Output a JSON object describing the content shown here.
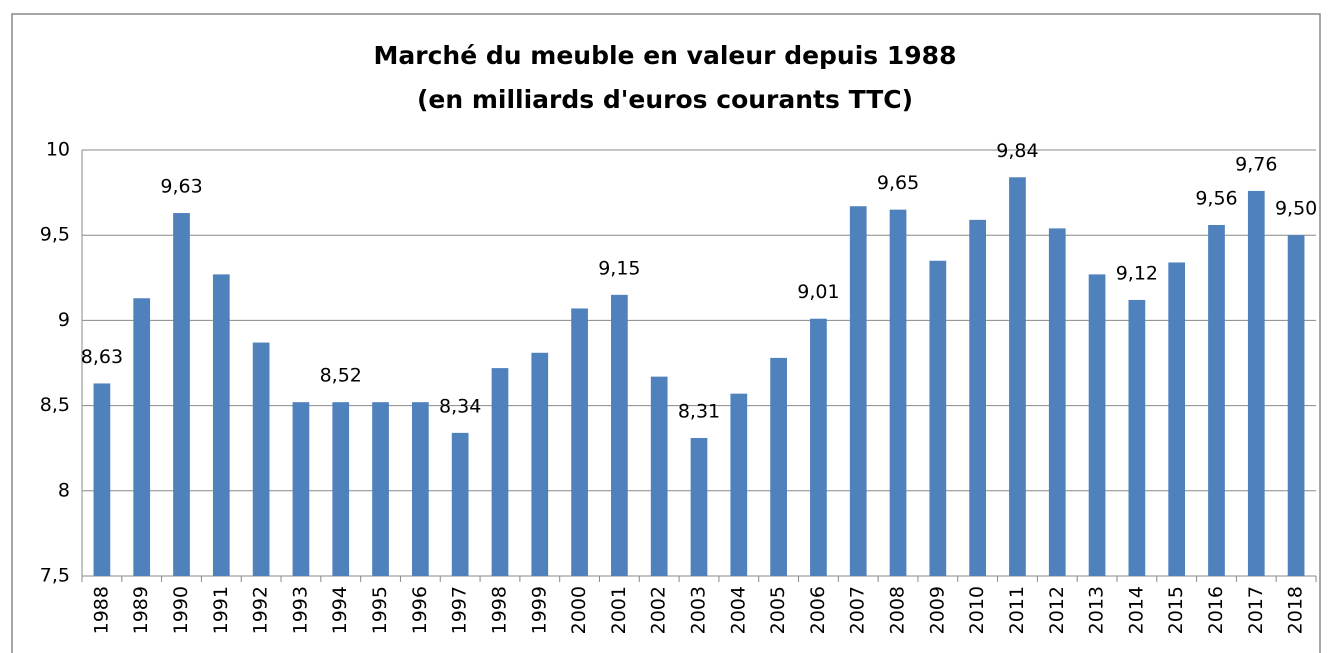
{
  "chart_data": {
    "type": "bar",
    "title": [
      "Marché du meuble en valeur depuis 1988",
      "(en milliards d'euros courants TTC)"
    ],
    "categories": [
      "1988",
      "1989",
      "1990",
      "1991",
      "1992",
      "1993",
      "1994",
      "1995",
      "1996",
      "1997",
      "1998",
      "1999",
      "2000",
      "2001",
      "2002",
      "2003",
      "2004",
      "2005",
      "2006",
      "2007",
      "2008",
      "2009",
      "2010",
      "2011",
      "2012",
      "2013",
      "2014",
      "2015",
      "2016",
      "2017",
      "2018"
    ],
    "values": [
      8.63,
      9.13,
      9.63,
      9.27,
      8.87,
      8.52,
      8.52,
      8.52,
      8.52,
      8.34,
      8.72,
      8.81,
      9.07,
      9.15,
      8.67,
      8.31,
      8.57,
      8.78,
      9.01,
      9.67,
      9.65,
      9.35,
      9.59,
      9.84,
      9.54,
      9.27,
      9.12,
      9.34,
      9.56,
      9.76,
      9.5
    ],
    "value_labels": [
      "8,63",
      null,
      "9,63",
      null,
      null,
      null,
      "8,52",
      null,
      null,
      "8,34",
      null,
      null,
      null,
      "9,15",
      null,
      "8,31",
      null,
      null,
      "9,01",
      null,
      "9,65",
      null,
      null,
      "9,84",
      null,
      null,
      "9,12",
      null,
      "9,56",
      "9,76",
      "9,50"
    ],
    "color": "#4f81bd",
    "ylim": [
      7.5,
      10
    ],
    "yticks": [
      {
        "value": 7.5,
        "label": "7,5"
      },
      8,
      {
        "value": 8.5,
        "label": "8,5"
      },
      9,
      {
        "value": 9.5,
        "label": "9,5"
      },
      10
    ],
    "grid": true
  }
}
